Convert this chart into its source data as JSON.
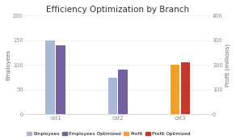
{
  "title": "Efficiency Optimization by Branch",
  "categories": [
    "cat1",
    "cat2",
    "cat3"
  ],
  "series": [
    {
      "name": "Employees",
      "data": [
        150,
        75,
        null
      ],
      "color": "#aab8d8",
      "axis": "left"
    },
    {
      "name": "Employees Optimized",
      "data": [
        140,
        90,
        null
      ],
      "color": "#7260a0",
      "axis": "left"
    },
    {
      "name": "Profit",
      "data": [
        null,
        null,
        200
      ],
      "color": "#f4a020",
      "axis": "right"
    },
    {
      "name": "Profit Optimized",
      "data": [
        null,
        null,
        210
      ],
      "color": "#c0392b",
      "axis": "right"
    }
  ],
  "left_yaxis": {
    "label": "Employees",
    "min": 0,
    "max": 200,
    "ticks": [
      0,
      50,
      100,
      150,
      200
    ]
  },
  "right_yaxis": {
    "label": "Profit (millions)",
    "min": 0,
    "max": 400,
    "ticks": [
      0,
      100,
      200,
      300,
      400
    ]
  },
  "bar_width": 0.15,
  "background_color": "#ffffff",
  "grid_color": "#e8e8e8",
  "title_fontsize": 7.5,
  "legend_fontsize": 4.2,
  "axis_label_fontsize": 5.0,
  "tick_fontsize": 4.8
}
